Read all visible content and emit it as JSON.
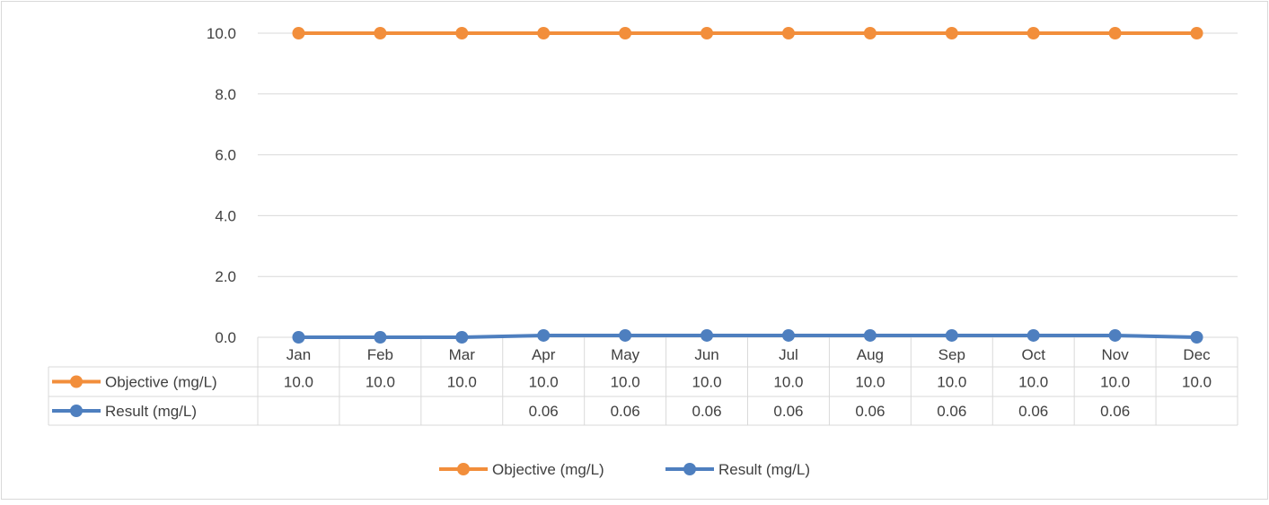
{
  "chart_data": {
    "type": "line",
    "categories": [
      "Jan",
      "Feb",
      "Mar",
      "Apr",
      "May",
      "Jun",
      "Jul",
      "Aug",
      "Sep",
      "Oct",
      "Nov",
      "Dec"
    ],
    "series": [
      {
        "name": "Objective (mg/L)",
        "color": "#F28E3B",
        "values": [
          10.0,
          10.0,
          10.0,
          10.0,
          10.0,
          10.0,
          10.0,
          10.0,
          10.0,
          10.0,
          10.0,
          10.0
        ],
        "table_labels": [
          "10.0",
          "10.0",
          "10.0",
          "10.0",
          "10.0",
          "10.0",
          "10.0",
          "10.0",
          "10.0",
          "10.0",
          "10.0",
          "10.0"
        ]
      },
      {
        "name": "Result (mg/L)",
        "color": "#4E7FBF",
        "values": [
          0.0,
          0.0,
          0.0,
          0.06,
          0.06,
          0.06,
          0.06,
          0.06,
          0.06,
          0.06,
          0.06,
          0.0
        ],
        "table_labels": [
          "",
          "",
          "",
          "0.06",
          "0.06",
          "0.06",
          "0.06",
          "0.06",
          "0.06",
          "0.06",
          "0.06",
          ""
        ]
      }
    ],
    "y_ticks": [
      "0.0",
      "2.0",
      "4.0",
      "6.0",
      "8.0",
      "10.0"
    ],
    "ylim": [
      0,
      10
    ],
    "grid": true,
    "legend_placement": "bottom",
    "data_table": true
  }
}
